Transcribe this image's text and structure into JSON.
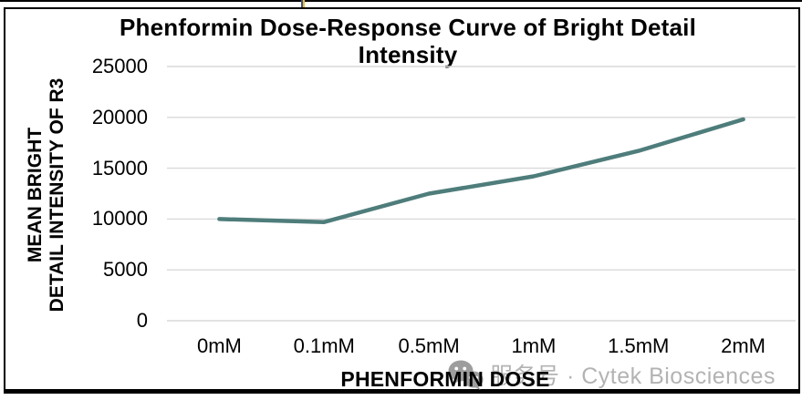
{
  "title_bar": {},
  "watermark": {
    "icon": "wechat-icon",
    "text": "服务号 · Cytek Biosciences",
    "text_color": "#b3b3b3",
    "icon_color": "#9d9d9d"
  },
  "frame": {
    "border_color": "#000000",
    "background": "#ffffff"
  },
  "chart_data": {
    "type": "line",
    "title": "Phenformin Dose-Response Curve of Bright Detail Intensity",
    "xlabel": "PHENFORMIN DOSE",
    "ylabel": "MEAN BRIGHT DETAIL INTENSITY OF R3",
    "ylabel_lines": [
      "MEAN BRIGHT",
      "DETAIL INTENSITY OF R3"
    ],
    "categories": [
      "0mM",
      "0.1mM",
      "0.5mM",
      "1mM",
      "1.5mM",
      "2mM"
    ],
    "values": [
      10000,
      9700,
      12500,
      14200,
      16700,
      19800
    ],
    "series_name": "Mean Bright Detail Intensity of R3",
    "y_ticks": [
      "0",
      "5000",
      "10000",
      "15000",
      "20000",
      "25000"
    ],
    "ylim": [
      0,
      25000
    ],
    "grid": true,
    "legend": "none",
    "line_color": "#4e7d7b",
    "gridline_color": "#d9d9d9"
  }
}
